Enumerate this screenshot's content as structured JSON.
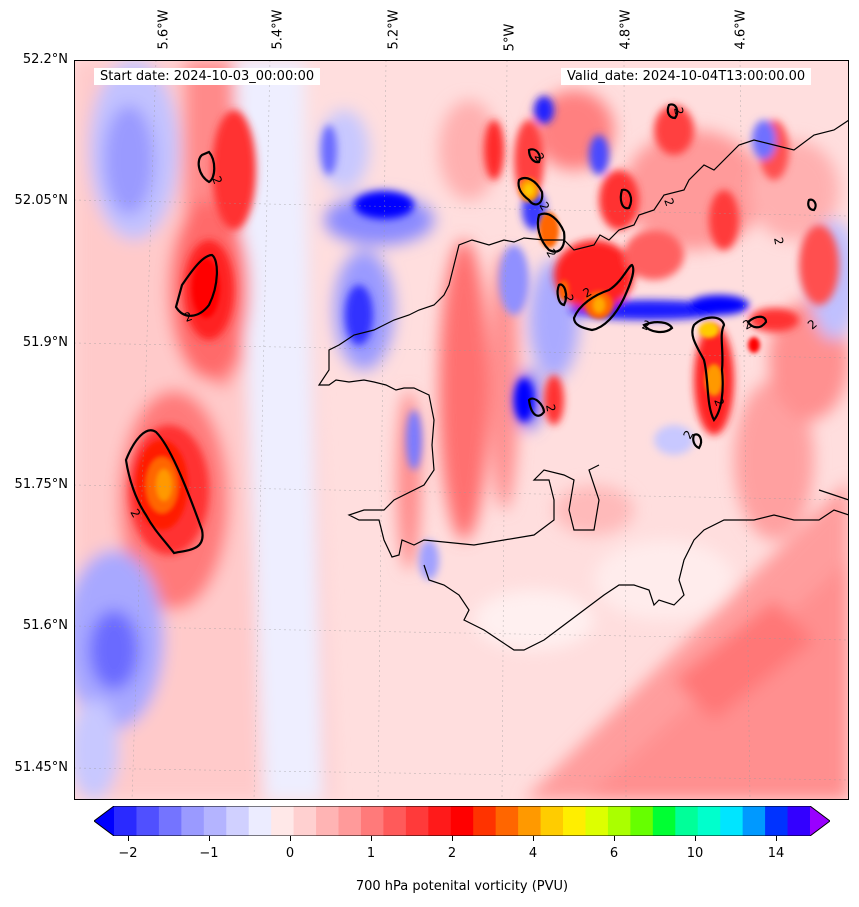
{
  "map": {
    "title_left": "Start date: 2024-10-03_00:00:00",
    "title_right": "Valid_date: 2024-10-04T13:00:00.00",
    "lon_labels": [
      "5.6°W",
      "5.4°W",
      "5.2°W",
      "5°W",
      "4.8°W",
      "4.6°W"
    ],
    "lat_labels": [
      "52.2°N",
      "52.05°N",
      "51.9°N",
      "51.75°N",
      "51.6°N",
      "51.45°N"
    ],
    "contour_label": "2",
    "variable": "700 hPa potential vorticity",
    "units": "PVU"
  },
  "colorbar": {
    "label": "700 hPa potenital vorticity (PVU)",
    "ticks": [
      "−2",
      "−1",
      "0",
      "1",
      "2",
      "4",
      "6",
      "10",
      "14"
    ],
    "colors": [
      "#0000ff",
      "#2a2aff",
      "#5050ff",
      "#7474ff",
      "#9a9aff",
      "#b4b4ff",
      "#d0d0ff",
      "#ececff",
      "#ffe8e8",
      "#ffd0d0",
      "#ffb4b4",
      "#ff9a9a",
      "#ff7a7a",
      "#ff5a5a",
      "#ff3a3a",
      "#ff1a1a",
      "#ff0000",
      "#ff3300",
      "#ff6600",
      "#ff9900",
      "#ffcc00",
      "#ffee00",
      "#ddff00",
      "#aaff00",
      "#66ff00",
      "#00ff33",
      "#00ff99",
      "#00ffcc",
      "#00e5ff",
      "#0099ff",
      "#0033ff",
      "#3300ff",
      "#9900ff"
    ]
  }
}
